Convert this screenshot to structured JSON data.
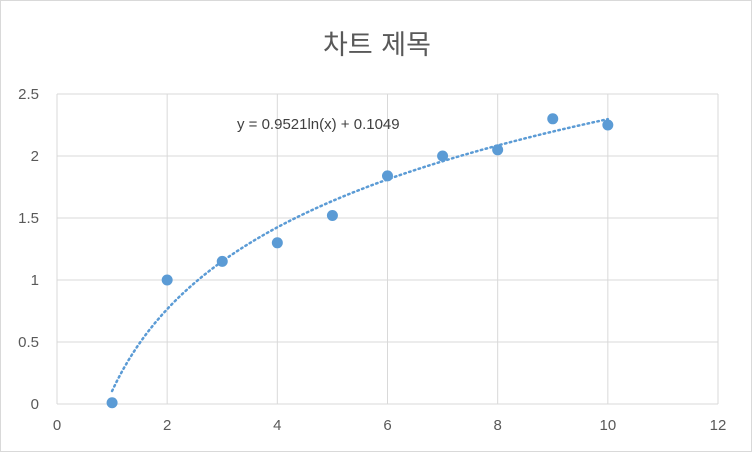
{
  "chart_data": {
    "type": "scatter",
    "title": "차트 제목",
    "xlabel": "",
    "ylabel": "",
    "xlim": [
      0,
      12
    ],
    "ylim": [
      0,
      2.5
    ],
    "x_ticks": [
      "0",
      "2",
      "4",
      "6",
      "8",
      "10",
      "12"
    ],
    "y_ticks": [
      "0",
      "0.5",
      "1",
      "1.5",
      "2",
      "2.5"
    ],
    "grid": true,
    "legend": "none",
    "marker_color": "#5b9bd5",
    "trendline": {
      "type": "logarithmic",
      "a": 0.9521,
      "b": 0.1049,
      "x_range": [
        1,
        10
      ],
      "style": "dotted",
      "color": "#5b9bd5",
      "equation": "y = 0.9521ln(x) + 0.1049"
    },
    "points": [
      {
        "x": 1,
        "y": 0.01
      },
      {
        "x": 2,
        "y": 1.0
      },
      {
        "x": 3,
        "y": 1.15
      },
      {
        "x": 4,
        "y": 1.3
      },
      {
        "x": 5,
        "y": 1.52
      },
      {
        "x": 6,
        "y": 1.84
      },
      {
        "x": 7,
        "y": 2.0
      },
      {
        "x": 8,
        "y": 2.05
      },
      {
        "x": 9,
        "y": 2.3
      },
      {
        "x": 10,
        "y": 2.25
      }
    ]
  }
}
